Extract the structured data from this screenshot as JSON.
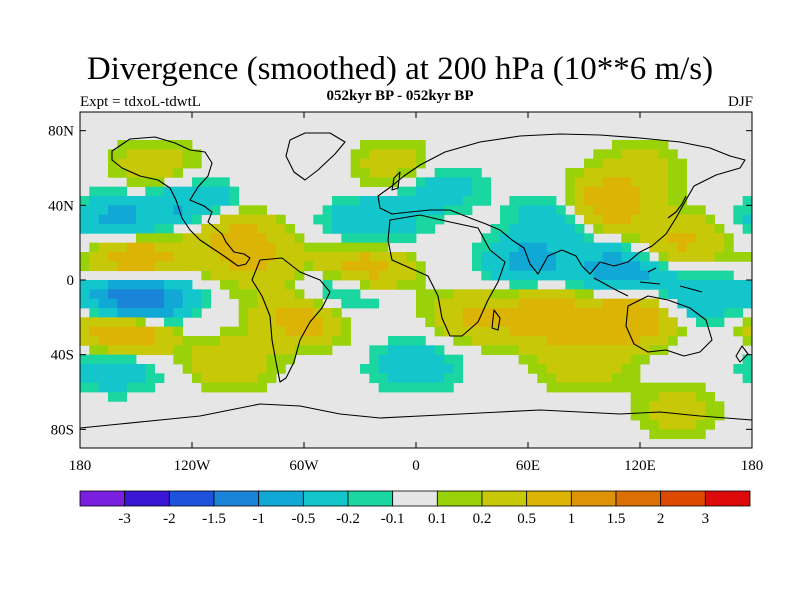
{
  "title": "Divergence (smoothed) at 200 hPa (10**6 m/s)",
  "subtitle": "052kyr BP - 052kyr BP",
  "experiment": "Expt = tdxoL-tdwtL",
  "season": "DJF",
  "map": {
    "lon_range": [
      -180,
      180
    ],
    "lat_range": [
      -90,
      90
    ],
    "lat_ticks": [
      {
        "label": "80N",
        "lat": 80
      },
      {
        "label": "40N",
        "lat": 40
      },
      {
        "label": "0",
        "lat": 0
      },
      {
        "label": "40S",
        "lat": -40
      },
      {
        "label": "80S",
        "lat": -80
      }
    ],
    "lon_ticks": [
      {
        "label": "180",
        "lon": -180
      },
      {
        "label": "120W",
        "lon": -120
      },
      {
        "label": "60W",
        "lon": -60
      },
      {
        "label": "0",
        "lon": 0
      },
      {
        "label": "60E",
        "lon": 60
      },
      {
        "label": "120E",
        "lon": 120
      },
      {
        "label": "180",
        "lon": 180
      }
    ],
    "background_color": "#e6e6e6"
  },
  "colorbar": {
    "colors": [
      "#7a1fe0",
      "#3a17d6",
      "#1c52dc",
      "#1a84d8",
      "#12a8d6",
      "#12c6cc",
      "#1ad6a0",
      "#e6e6e6",
      "#9ad20a",
      "#c6c808",
      "#dcb406",
      "#dc9406",
      "#dc7004",
      "#dc4a02",
      "#dc0a0a"
    ],
    "labels": [
      "-3",
      "-2",
      "-1.5",
      "-1",
      "-0.5",
      "-0.2",
      "-0.1",
      "0.1",
      "0.2",
      "0.5",
      "1",
      "1.5",
      "2",
      "3"
    ]
  },
  "chart_data": {
    "type": "heatmap",
    "title": "Divergence (smoothed) at 200 hPa (10**6 m/s)",
    "levels": [
      -3,
      -2,
      -1.5,
      -1,
      -0.5,
      -0.2,
      -0.1,
      0.1,
      0.2,
      0.5,
      1,
      1.5,
      2,
      3
    ],
    "features": [
      {
        "lon": -150,
        "lat": -12,
        "value": -2.2
      },
      {
        "lon": -155,
        "lat": -25,
        "value": 1.6
      },
      {
        "lon": -150,
        "lat": 10,
        "value": 1.0
      },
      {
        "lon": -160,
        "lat": 32,
        "value": -0.6
      },
      {
        "lon": -120,
        "lat": 40,
        "value": -0.6
      },
      {
        "lon": -100,
        "lat": 25,
        "value": 0.6
      },
      {
        "lon": -140,
        "lat": 60,
        "value": 0.4
      },
      {
        "lon": -85,
        "lat": 10,
        "value": 0.5
      },
      {
        "lon": -60,
        "lat": -20,
        "value": 0.8
      },
      {
        "lon": -40,
        "lat": -5,
        "value": -0.8
      },
      {
        "lon": -30,
        "lat": 5,
        "value": 1.0
      },
      {
        "lon": -25,
        "lat": 30,
        "value": -0.5
      },
      {
        "lon": -10,
        "lat": 60,
        "value": 0.4
      },
      {
        "lon": 10,
        "lat": 50,
        "value": -0.4
      },
      {
        "lon": 30,
        "lat": -20,
        "value": 0.5
      },
      {
        "lon": 60,
        "lat": 10,
        "value": -0.6
      },
      {
        "lon": 80,
        "lat": 35,
        "value": -0.6
      },
      {
        "lon": 70,
        "lat": -20,
        "value": 0.8
      },
      {
        "lon": 100,
        "lat": 40,
        "value": 1.0
      },
      {
        "lon": 110,
        "lat": 5,
        "value": -0.8
      },
      {
        "lon": 115,
        "lat": -20,
        "value": 1.0
      },
      {
        "lon": 140,
        "lat": 20,
        "value": 0.6
      },
      {
        "lon": 150,
        "lat": -10,
        "value": -0.5
      },
      {
        "lon": 120,
        "lat": 60,
        "value": 0.3
      },
      {
        "lon": -160,
        "lat": -45,
        "value": -0.5
      },
      {
        "lon": -100,
        "lat": -45,
        "value": 0.4
      },
      {
        "lon": 0,
        "lat": -45,
        "value": -0.4
      },
      {
        "lon": 90,
        "lat": -45,
        "value": 0.4
      },
      {
        "lon": 140,
        "lat": -70,
        "value": 0.3
      }
    ]
  }
}
